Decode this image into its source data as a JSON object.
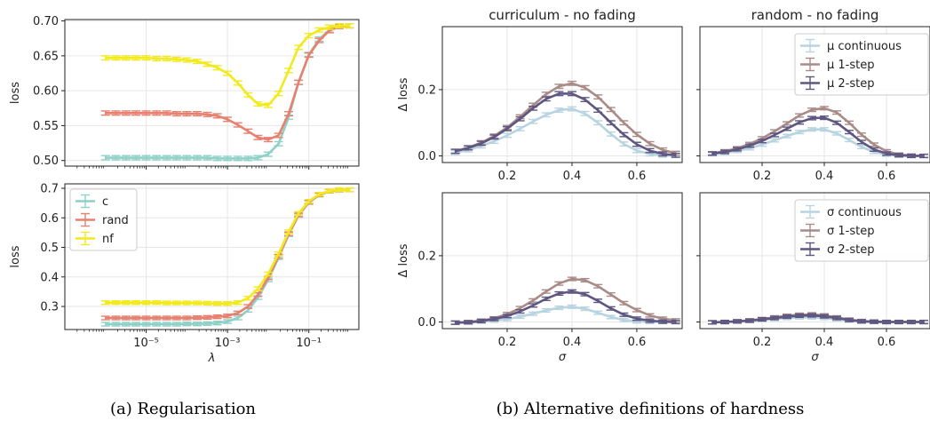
{
  "captions": {
    "a": "(a) Regularisation",
    "b": "(b) Alternative definitions of hardness"
  },
  "colors": {
    "c": "#8fd1c6",
    "rand": "#e8806f",
    "nf": "#f2ea1f",
    "continuous": "#b8d4e1",
    "one_step": "#a98b88",
    "two_step": "#5e5781",
    "grid": "#e6e6e6"
  },
  "chart_data": [
    {
      "id": "reg-top",
      "type": "line",
      "xscale": "log",
      "xlim": [
        1e-07,
        1.7
      ],
      "ylim": [
        0.492,
        0.702
      ],
      "ylabel": "loss",
      "xlabel": "",
      "yticks": [
        0.5,
        0.55,
        0.6,
        0.65,
        0.7
      ],
      "ytick_labels": [
        "0.50",
        "0.55",
        "0.60",
        "0.65",
        "0.70"
      ],
      "xticks": [
        1e-05,
        0.001,
        0.1
      ],
      "xtick_labels": [],
      "grid": true,
      "legend": null,
      "x": [
        1e-06,
        1.8e-06,
        3.2e-06,
        5.6e-06,
        1e-05,
        1.8e-05,
        3.2e-05,
        5.6e-05,
        0.0001,
        0.00018,
        0.00032,
        0.00056,
        0.001,
        0.0018,
        0.0032,
        0.0056,
        0.01,
        0.018,
        0.032,
        0.056,
        0.1,
        0.18,
        0.32,
        0.56,
        1.0
      ],
      "series": [
        {
          "name": "c",
          "color_key": "c",
          "values": [
            0.504,
            0.504,
            0.504,
            0.504,
            0.504,
            0.504,
            0.504,
            0.504,
            0.504,
            0.504,
            0.504,
            0.503,
            0.503,
            0.503,
            0.503,
            0.504,
            0.509,
            0.524,
            0.562,
            0.612,
            0.652,
            0.674,
            0.687,
            0.692,
            0.693
          ],
          "err": 0.003
        },
        {
          "name": "rand",
          "color_key": "rand",
          "values": [
            0.568,
            0.568,
            0.568,
            0.568,
            0.568,
            0.568,
            0.568,
            0.567,
            0.567,
            0.567,
            0.566,
            0.564,
            0.559,
            0.551,
            0.542,
            0.533,
            0.53,
            0.536,
            0.567,
            0.612,
            0.651,
            0.672,
            0.686,
            0.692,
            0.693
          ],
          "err": 0.003
        },
        {
          "name": "nf",
          "color_key": "nf",
          "values": [
            0.647,
            0.647,
            0.647,
            0.647,
            0.647,
            0.646,
            0.646,
            0.645,
            0.644,
            0.642,
            0.638,
            0.633,
            0.625,
            0.611,
            0.594,
            0.581,
            0.579,
            0.596,
            0.629,
            0.662,
            0.679,
            0.687,
            0.691,
            0.693,
            0.693
          ],
          "err": 0.003
        }
      ]
    },
    {
      "id": "reg-bottom",
      "type": "line",
      "xscale": "log",
      "xlim": [
        1e-07,
        1.7
      ],
      "ylim": [
        0.222,
        0.715
      ],
      "ylabel": "loss",
      "xlabel": "λ",
      "yticks": [
        0.3,
        0.4,
        0.5,
        0.6,
        0.7
      ],
      "ytick_labels": [
        "0.3",
        "0.4",
        "0.5",
        "0.6",
        "0.7"
      ],
      "xticks": [
        1e-05,
        0.001,
        0.1
      ],
      "xtick_labels": [
        "10⁻⁵",
        "10⁻³",
        "10⁻¹"
      ],
      "grid": true,
      "legend": "top-left",
      "x": [
        1e-06,
        1.8e-06,
        3.2e-06,
        5.6e-06,
        1e-05,
        1.8e-05,
        3.2e-05,
        5.6e-05,
        0.0001,
        0.00018,
        0.00032,
        0.00056,
        0.001,
        0.0018,
        0.0032,
        0.0056,
        0.01,
        0.018,
        0.032,
        0.056,
        0.1,
        0.18,
        0.32,
        0.56,
        1.0
      ],
      "series": [
        {
          "name": "c",
          "color_key": "c",
          "values": [
            0.24,
            0.24,
            0.24,
            0.24,
            0.24,
            0.24,
            0.24,
            0.24,
            0.241,
            0.241,
            0.242,
            0.244,
            0.249,
            0.261,
            0.287,
            0.33,
            0.39,
            0.465,
            0.543,
            0.608,
            0.652,
            0.677,
            0.69,
            0.694,
            0.695
          ],
          "err": 0.006
        },
        {
          "name": "rand",
          "color_key": "rand",
          "values": [
            0.261,
            0.261,
            0.261,
            0.261,
            0.261,
            0.261,
            0.261,
            0.261,
            0.261,
            0.262,
            0.263,
            0.265,
            0.268,
            0.278,
            0.3,
            0.34,
            0.397,
            0.47,
            0.546,
            0.61,
            0.653,
            0.678,
            0.69,
            0.694,
            0.695
          ],
          "err": 0.006
        },
        {
          "name": "nf",
          "color_key": "nf",
          "values": [
            0.313,
            0.313,
            0.313,
            0.313,
            0.313,
            0.313,
            0.312,
            0.312,
            0.312,
            0.312,
            0.311,
            0.31,
            0.31,
            0.313,
            0.328,
            0.36,
            0.41,
            0.478,
            0.553,
            0.615,
            0.656,
            0.68,
            0.691,
            0.695,
            0.695
          ],
          "err": 0.006
        }
      ]
    },
    {
      "id": "hard-tl",
      "type": "line",
      "title": "curriculum - no fading",
      "xlim": [
        0.0,
        0.74
      ],
      "ylim": [
        -0.02,
        0.39
      ],
      "ylabel": "Δ loss",
      "xlabel": "",
      "yticks": [
        0.0,
        0.2
      ],
      "ytick_labels": [
        "0.0",
        "0.2"
      ],
      "xticks": [
        0.2,
        0.4,
        0.6
      ],
      "xtick_labels": [
        "0.2",
        "0.4",
        "0.6"
      ],
      "grid": true,
      "legend": null,
      "x": [
        0.04,
        0.08,
        0.12,
        0.16,
        0.2,
        0.24,
        0.28,
        0.32,
        0.36,
        0.4,
        0.44,
        0.48,
        0.52,
        0.56,
        0.6,
        0.64,
        0.68,
        0.72
      ],
      "series": [
        {
          "name": "μ continuous",
          "color_key": "continuous",
          "values": [
            0.01,
            0.018,
            0.03,
            0.044,
            0.062,
            0.082,
            0.104,
            0.124,
            0.138,
            0.142,
            0.128,
            0.1,
            0.066,
            0.036,
            0.016,
            0.006,
            0.002,
            0.001
          ],
          "err": 0.006
        },
        {
          "name": "μ 1-step",
          "color_key": "one_step",
          "values": [
            0.014,
            0.025,
            0.04,
            0.06,
            0.086,
            0.118,
            0.153,
            0.186,
            0.21,
            0.219,
            0.206,
            0.178,
            0.14,
            0.1,
            0.065,
            0.037,
            0.018,
            0.008
          ],
          "err": 0.006
        },
        {
          "name": "μ 2-step",
          "color_key": "two_step",
          "values": [
            0.014,
            0.024,
            0.038,
            0.057,
            0.082,
            0.112,
            0.144,
            0.172,
            0.188,
            0.188,
            0.17,
            0.138,
            0.1,
            0.064,
            0.035,
            0.016,
            0.006,
            0.002
          ],
          "err": 0.006
        }
      ]
    },
    {
      "id": "hard-tr",
      "type": "line",
      "title": "random - no fading",
      "xlim": [
        0.0,
        0.74
      ],
      "ylim": [
        -0.02,
        0.39
      ],
      "ylabel": "",
      "xlabel": "",
      "yticks": [
        0.0,
        0.2
      ],
      "ytick_labels": [],
      "xticks": [
        0.2,
        0.4,
        0.6
      ],
      "xtick_labels": [
        "0.2",
        "0.4",
        "0.6"
      ],
      "grid": true,
      "legend": "top-right",
      "x": [
        0.04,
        0.08,
        0.12,
        0.16,
        0.2,
        0.24,
        0.28,
        0.32,
        0.36,
        0.4,
        0.44,
        0.48,
        0.52,
        0.56,
        0.6,
        0.64,
        0.68,
        0.72
      ],
      "series": [
        {
          "name": "μ continuous",
          "color_key": "continuous",
          "values": [
            0.005,
            0.009,
            0.015,
            0.023,
            0.034,
            0.047,
            0.06,
            0.072,
            0.08,
            0.08,
            0.068,
            0.048,
            0.027,
            0.012,
            0.004,
            0.001,
            0.0,
            0.0
          ],
          "err": 0.005
        },
        {
          "name": "μ 1-step",
          "color_key": "one_step",
          "values": [
            0.008,
            0.014,
            0.023,
            0.036,
            0.053,
            0.074,
            0.098,
            0.122,
            0.139,
            0.144,
            0.131,
            0.1,
            0.064,
            0.034,
            0.014,
            0.004,
            0.001,
            0.0
          ],
          "err": 0.005
        },
        {
          "name": "μ 2-step",
          "color_key": "two_step",
          "values": [
            0.007,
            0.012,
            0.02,
            0.031,
            0.045,
            0.063,
            0.082,
            0.101,
            0.114,
            0.115,
            0.1,
            0.072,
            0.042,
            0.019,
            0.007,
            0.002,
            0.0,
            0.0
          ],
          "err": 0.005
        }
      ]
    },
    {
      "id": "hard-bl",
      "type": "line",
      "title": "",
      "xlim": [
        0.0,
        0.74
      ],
      "ylim": [
        -0.02,
        0.39
      ],
      "ylabel": "Δ loss",
      "xlabel": "σ",
      "yticks": [
        0.0,
        0.2
      ],
      "ytick_labels": [
        "0.0",
        "0.2"
      ],
      "xticks": [
        0.2,
        0.4,
        0.6
      ],
      "xtick_labels": [
        "0.2",
        "0.4",
        "0.6"
      ],
      "grid": true,
      "legend": null,
      "x": [
        0.04,
        0.08,
        0.12,
        0.16,
        0.2,
        0.24,
        0.28,
        0.32,
        0.36,
        0.4,
        0.44,
        0.48,
        0.52,
        0.56,
        0.6,
        0.64,
        0.68,
        0.72
      ],
      "series": [
        {
          "name": "σ continuous",
          "color_key": "continuous",
          "values": [
            -0.002,
            -0.001,
            0.001,
            0.004,
            0.009,
            0.016,
            0.025,
            0.035,
            0.043,
            0.046,
            0.04,
            0.028,
            0.015,
            0.006,
            0.002,
            0.0,
            0.0,
            0.0
          ],
          "err": 0.005
        },
        {
          "name": "σ 1-step",
          "color_key": "one_step",
          "values": [
            -0.002,
            0.0,
            0.004,
            0.011,
            0.024,
            0.042,
            0.065,
            0.092,
            0.116,
            0.13,
            0.126,
            0.108,
            0.083,
            0.057,
            0.036,
            0.02,
            0.01,
            0.005
          ],
          "err": 0.005
        },
        {
          "name": "σ 2-step",
          "color_key": "two_step",
          "values": [
            -0.002,
            -0.001,
            0.003,
            0.009,
            0.018,
            0.032,
            0.05,
            0.07,
            0.086,
            0.092,
            0.084,
            0.064,
            0.041,
            0.022,
            0.01,
            0.004,
            0.001,
            0.0
          ],
          "err": 0.005
        }
      ]
    },
    {
      "id": "hard-br",
      "type": "line",
      "title": "",
      "xlim": [
        0.0,
        0.74
      ],
      "ylim": [
        -0.02,
        0.39
      ],
      "ylabel": "",
      "xlabel": "σ",
      "yticks": [
        0.0,
        0.2
      ],
      "ytick_labels": [],
      "xticks": [
        0.2,
        0.4,
        0.6
      ],
      "xtick_labels": [
        "0.2",
        "0.4",
        "0.6"
      ],
      "grid": true,
      "legend": "top-right",
      "x": [
        0.04,
        0.08,
        0.12,
        0.16,
        0.2,
        0.24,
        0.28,
        0.32,
        0.36,
        0.4,
        0.44,
        0.48,
        0.52,
        0.56,
        0.6,
        0.64,
        0.68,
        0.72
      ],
      "series": [
        {
          "name": "σ continuous",
          "color_key": "continuous",
          "values": [
            -0.001,
            0.0,
            0.001,
            0.003,
            0.006,
            0.009,
            0.012,
            0.014,
            0.014,
            0.012,
            0.008,
            0.004,
            0.001,
            0.0,
            0.0,
            0.0,
            0.0,
            0.0
          ],
          "err": 0.005
        },
        {
          "name": "σ 1-step",
          "color_key": "one_step",
          "values": [
            -0.001,
            0.0,
            0.002,
            0.005,
            0.009,
            0.014,
            0.019,
            0.022,
            0.023,
            0.02,
            0.014,
            0.007,
            0.003,
            0.001,
            0.0,
            0.0,
            0.0,
            0.0
          ],
          "err": 0.005
        },
        {
          "name": "σ 2-step",
          "color_key": "two_step",
          "values": [
            -0.001,
            0.0,
            0.002,
            0.004,
            0.008,
            0.012,
            0.016,
            0.019,
            0.02,
            0.017,
            0.012,
            0.006,
            0.002,
            0.001,
            0.0,
            0.0,
            0.0,
            0.0
          ],
          "err": 0.005
        }
      ]
    }
  ]
}
